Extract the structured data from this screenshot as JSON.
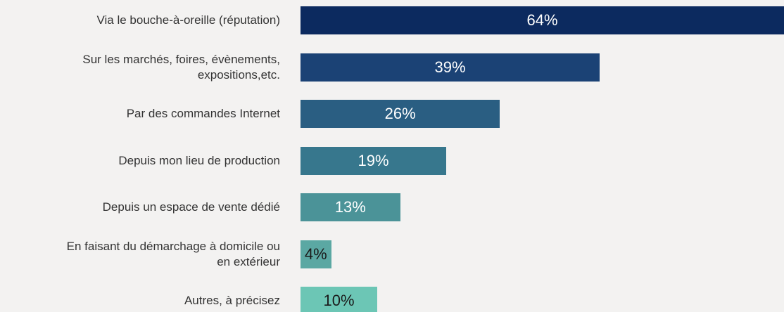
{
  "chart_data": {
    "type": "bar",
    "orientation": "horizontal",
    "categories": [
      "Via le bouche-à-oreille (réputation)",
      "Sur les marchés, foires, évènements,\nexpositions,etc.",
      "Par des commandes Internet",
      "Depuis mon lieu de production",
      "Depuis un espace de vente dédié",
      "En faisant du démarchage à domicile ou\nen extérieur",
      "Autres, à précisez"
    ],
    "values": [
      64,
      39,
      26,
      19,
      13,
      4,
      10
    ],
    "value_labels": [
      "64%",
      "39%",
      "26%",
      "19%",
      "13%",
      "4%",
      "10%"
    ],
    "colors": [
      "#0c2a5f",
      "#1b4275",
      "#2a5e82",
      "#37778d",
      "#4b9398",
      "#5ba8a3",
      "#6cc6b5"
    ],
    "value_label_colors": [
      "#ffffff",
      "#ffffff",
      "#ffffff",
      "#ffffff",
      "#ffffff",
      "#1a1a1a",
      "#1a1a1a"
    ]
  }
}
